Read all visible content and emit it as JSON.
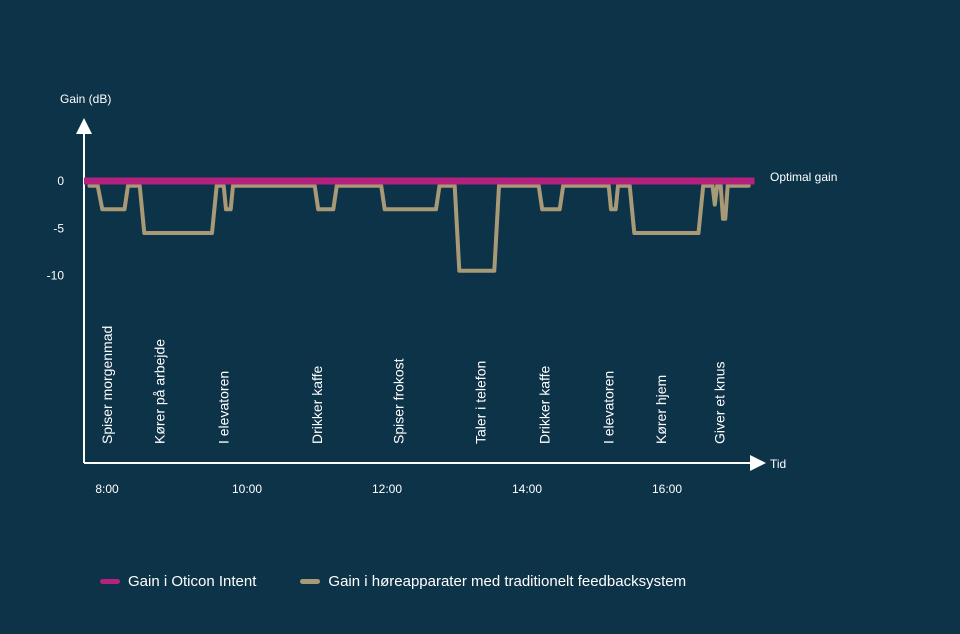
{
  "chart_data": {
    "type": "line",
    "ylabel": "Gain (dB)",
    "xlabel": "Tid",
    "ylim": [
      -11,
      6
    ],
    "xlim": [
      "7:45",
      "17:15"
    ],
    "y_ticks": [
      {
        "value": 0,
        "label": "0"
      },
      {
        "value": -5,
        "label": "-5"
      },
      {
        "value": -10,
        "label": "-10"
      }
    ],
    "x_ticks": [
      {
        "value": "8:00",
        "label": "8:00"
      },
      {
        "value": "10:00",
        "label": "10:00"
      },
      {
        "value": "12:00",
        "label": "12:00"
      },
      {
        "value": "14:00",
        "label": "14:00"
      },
      {
        "value": "16:00",
        "label": "16:00"
      }
    ],
    "annotations": [
      {
        "text": "Optimal gain",
        "y": 0
      }
    ],
    "activities": [
      {
        "time": "8:00",
        "label": "Spiser morgenmad"
      },
      {
        "time": "8:45",
        "label": "Kører på arbejde"
      },
      {
        "time": "9:40",
        "label": "I elevatoren"
      },
      {
        "time": "11:00",
        "label": "Drikker kaffe"
      },
      {
        "time": "12:10",
        "label": "Spiser frokost"
      },
      {
        "time": "13:20",
        "label": "Taler i telefon"
      },
      {
        "time": "14:15",
        "label": "Drikker kaffe"
      },
      {
        "time": "15:10",
        "label": "I elevatoren"
      },
      {
        "time": "15:55",
        "label": "Kører hjem"
      },
      {
        "time": "16:45",
        "label": "Giver et knus"
      }
    ],
    "series": [
      {
        "name": "Gain i Oticon Intent",
        "color": "#b5217e",
        "points": [
          [
            "7:45",
            0
          ],
          [
            "17:15",
            0
          ]
        ]
      },
      {
        "name": "Gain i høreapparater med traditionelt feedbacksystem",
        "color": "#a89a76",
        "points": [
          [
            "7:45",
            -0.5
          ],
          [
            "7:52",
            -0.5
          ],
          [
            "7:56",
            -3
          ],
          [
            "8:15",
            -3
          ],
          [
            "8:18",
            -0.5
          ],
          [
            "8:28",
            -0.5
          ],
          [
            "8:32",
            -5.5
          ],
          [
            "9:30",
            -5.5
          ],
          [
            "9:34",
            -0.5
          ],
          [
            "9:40",
            -0.5
          ],
          [
            "9:42",
            -3
          ],
          [
            "9:46",
            -3
          ],
          [
            "9:48",
            -0.5
          ],
          [
            "10:58",
            -0.5
          ],
          [
            "11:01",
            -3
          ],
          [
            "11:14",
            -3
          ],
          [
            "11:17",
            -0.5
          ],
          [
            "11:55",
            -0.5
          ],
          [
            "11:58",
            -3
          ],
          [
            "12:42",
            -3
          ],
          [
            "12:45",
            -0.5
          ],
          [
            "12:58",
            -0.5
          ],
          [
            "13:02",
            -9.5
          ],
          [
            "13:32",
            -9.5
          ],
          [
            "13:36",
            -0.5
          ],
          [
            "14:10",
            -0.5
          ],
          [
            "14:13",
            -3
          ],
          [
            "14:28",
            -3
          ],
          [
            "14:31",
            -0.5
          ],
          [
            "15:10",
            -0.5
          ],
          [
            "15:12",
            -3
          ],
          [
            "15:16",
            -3
          ],
          [
            "15:18",
            -0.5
          ],
          [
            "15:28",
            -0.5
          ],
          [
            "15:32",
            -5.5
          ],
          [
            "16:27",
            -5.5
          ],
          [
            "16:31",
            -0.5
          ],
          [
            "16:39",
            -0.5
          ],
          [
            "16:41",
            -2.5
          ],
          [
            "16:43",
            -0.5
          ],
          [
            "16:46",
            -0.5
          ],
          [
            "16:48",
            -4
          ],
          [
            "16:50",
            -4
          ],
          [
            "16:52",
            -0.5
          ],
          [
            "17:10",
            -0.5
          ]
        ]
      }
    ],
    "grid": false,
    "legend_position": "bottom"
  },
  "legend": {
    "intent_label": "Gain i Oticon Intent",
    "traditional_label": "Gain i høreapparater med traditionelt feedbacksystem"
  },
  "colors": {
    "background": "#0d3349",
    "axis": "#ffffff",
    "intent": "#b5217e",
    "traditional": "#a89a76"
  }
}
